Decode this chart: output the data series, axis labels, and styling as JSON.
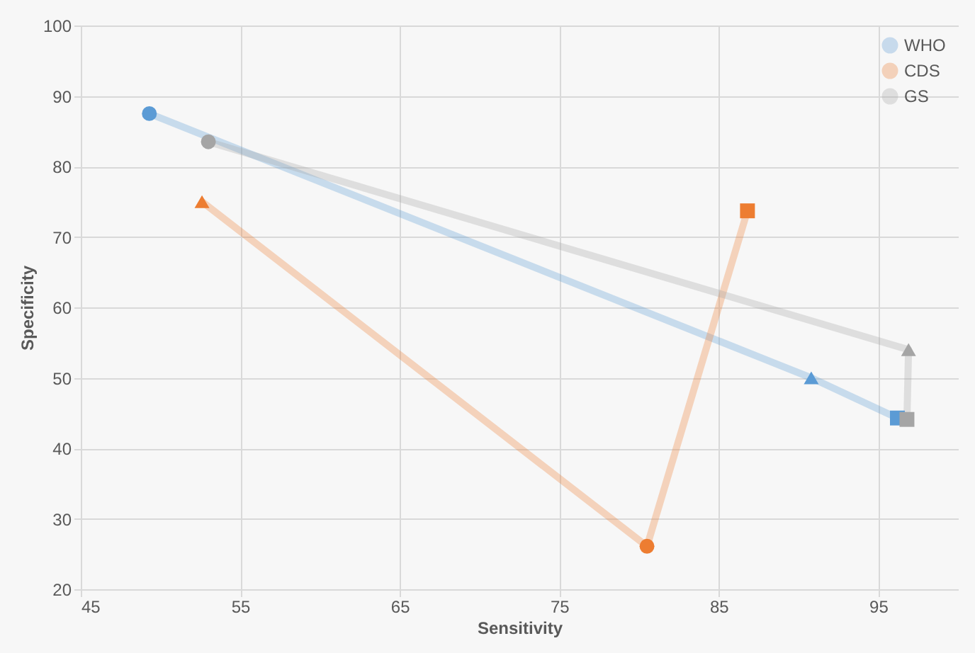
{
  "chart_data": {
    "type": "line",
    "xlabel": "Sensitivity",
    "ylabel": "Specificity",
    "xlim": [
      45,
      100
    ],
    "xticks": [
      45,
      55,
      65,
      75,
      85,
      95
    ],
    "ylim": [
      20,
      100
    ],
    "yticks": [
      20,
      30,
      40,
      50,
      60,
      70,
      80,
      90,
      100
    ],
    "grid": true,
    "legend": "top right",
    "series": [
      {
        "name": "WHO",
        "color": "#5b9bd5",
        "x": [
          49.3,
          90.8,
          96.2
        ],
        "values": [
          87.5,
          50,
          44.3
        ],
        "marker": [
          "circle",
          "triangle",
          "square"
        ]
      },
      {
        "name": "CDS",
        "color": "#ed7d31",
        "x": [
          52.6,
          80.5,
          86.8
        ],
        "values": [
          75,
          26.1,
          73.7
        ],
        "marker": [
          "triangle",
          "circle",
          "square"
        ]
      },
      {
        "name": "GS",
        "color": "#a5a5a5",
        "x": [
          53,
          96.9,
          96.8
        ],
        "values": [
          83.5,
          54,
          44.1
        ],
        "marker": [
          "circle",
          "triangle",
          "square"
        ]
      }
    ]
  }
}
